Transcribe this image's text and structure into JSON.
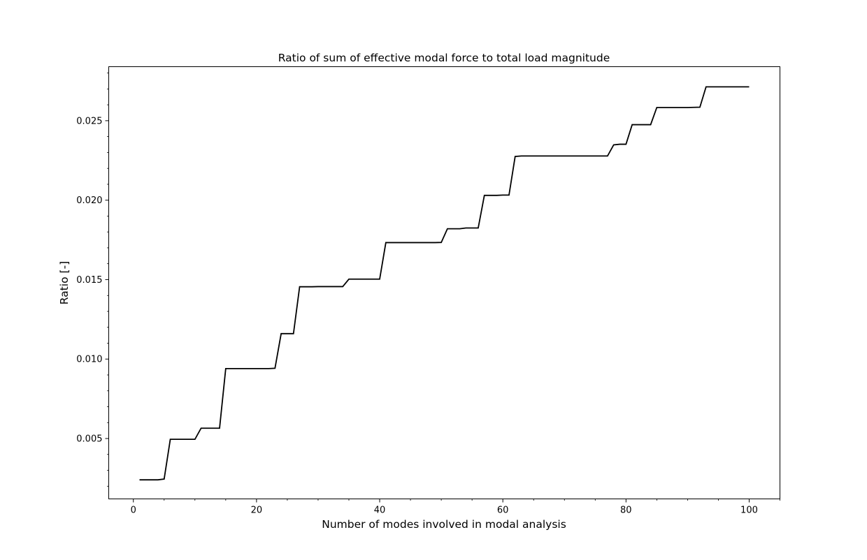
{
  "chart_data": {
    "type": "line",
    "title": "Ratio of sum of effective modal force to total load magnitude",
    "xlabel": "Number of modes involved in modal analysis",
    "ylabel": "Ratio [-]",
    "xlim": [
      -4,
      105
    ],
    "ylim": [
      0.0012,
      0.0284
    ],
    "xticks": [
      0,
      20,
      40,
      60,
      80,
      100
    ],
    "xtick_labels": [
      "0",
      "20",
      "40",
      "60",
      "80",
      "100"
    ],
    "yticks": [
      0.005,
      0.01,
      0.015,
      0.02,
      0.025
    ],
    "ytick_labels": [
      "0.005",
      "0.010",
      "0.015",
      "0.020",
      "0.025"
    ],
    "grid": false,
    "legend": false,
    "line_color": "#000000",
    "series": [
      {
        "x": [
          1,
          2,
          3,
          4,
          5,
          6,
          7,
          8,
          9,
          10,
          11,
          12,
          13,
          14,
          15,
          16,
          17,
          18,
          19,
          20,
          21,
          22,
          23,
          24,
          25,
          26,
          27,
          28,
          29,
          30,
          31,
          32,
          33,
          34,
          35,
          36,
          37,
          38,
          39,
          40,
          41,
          42,
          43,
          44,
          45,
          46,
          47,
          48,
          49,
          50,
          51,
          52,
          53,
          54,
          55,
          56,
          57,
          58,
          59,
          60,
          61,
          62,
          63,
          64,
          65,
          66,
          67,
          68,
          69,
          70,
          71,
          72,
          73,
          74,
          75,
          76,
          77,
          78,
          79,
          80,
          81,
          82,
          83,
          84,
          85,
          86,
          87,
          88,
          89,
          90,
          91,
          92,
          93,
          94,
          95,
          96,
          97,
          98,
          99,
          100
        ],
        "values": [
          0.0024,
          0.0024,
          0.0024,
          0.0024,
          0.00245,
          0.00495,
          0.00495,
          0.00495,
          0.00495,
          0.00495,
          0.00565,
          0.00565,
          0.00565,
          0.00565,
          0.0094,
          0.0094,
          0.0094,
          0.0094,
          0.0094,
          0.0094,
          0.0094,
          0.0094,
          0.00942,
          0.0116,
          0.0116,
          0.0116,
          0.01455,
          0.01455,
          0.01455,
          0.01456,
          0.01456,
          0.01456,
          0.01456,
          0.01456,
          0.01503,
          0.01503,
          0.01503,
          0.01503,
          0.01503,
          0.01503,
          0.01733,
          0.01733,
          0.01733,
          0.01733,
          0.01733,
          0.01733,
          0.01733,
          0.01733,
          0.01733,
          0.01734,
          0.0182,
          0.0182,
          0.0182,
          0.01825,
          0.01825,
          0.01825,
          0.0203,
          0.0203,
          0.0203,
          0.02032,
          0.02032,
          0.02275,
          0.02278,
          0.02278,
          0.02278,
          0.02278,
          0.02278,
          0.02278,
          0.02278,
          0.02278,
          0.02278,
          0.02278,
          0.02278,
          0.02278,
          0.02278,
          0.02278,
          0.02278,
          0.02348,
          0.02352,
          0.02352,
          0.02475,
          0.02475,
          0.02475,
          0.02475,
          0.02583,
          0.02583,
          0.02583,
          0.02583,
          0.02583,
          0.02583,
          0.02584,
          0.02585,
          0.02713,
          0.02713,
          0.02713,
          0.02713,
          0.02713,
          0.02713,
          0.02713,
          0.02713
        ]
      }
    ]
  }
}
